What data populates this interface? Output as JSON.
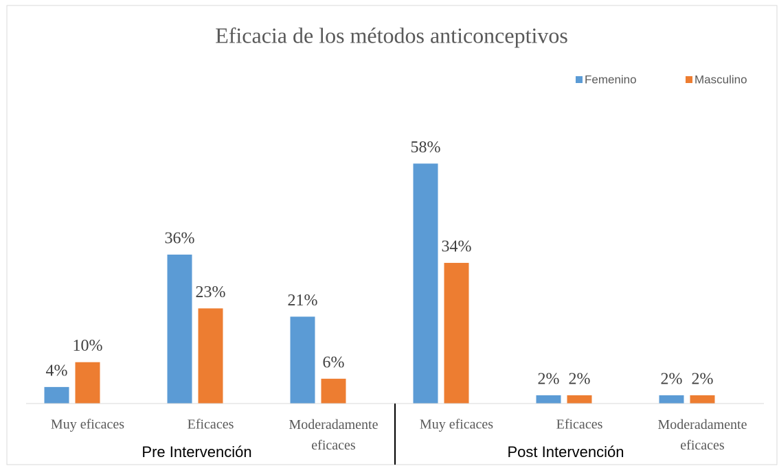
{
  "chart_data": {
    "type": "bar",
    "title": "Eficacia de los métodos anticonceptivos",
    "categories": [
      "Muy eficaces",
      "Eficaces",
      "Moderadamente eficaces",
      "Muy eficaces",
      "Eficaces",
      "Moderadamente eficaces"
    ],
    "groups": [
      "Pre Intervención",
      "Post Intervención"
    ],
    "series": [
      {
        "name": "Femenino",
        "color": "#5b9bd5",
        "values": [
          4,
          36,
          21,
          58,
          2,
          2
        ],
        "value_labels": [
          "4%",
          "36%",
          "21%",
          "58%",
          "2%",
          "2%"
        ]
      },
      {
        "name": "Masculino",
        "color": "#ed7d31",
        "values": [
          10,
          23,
          6,
          34,
          2,
          2
        ],
        "value_labels": [
          "10%",
          "23%",
          "6%",
          "34%",
          "2%",
          "2%"
        ]
      }
    ],
    "ylim": [
      0,
      70
    ],
    "grid": false,
    "legend": "top-right"
  }
}
